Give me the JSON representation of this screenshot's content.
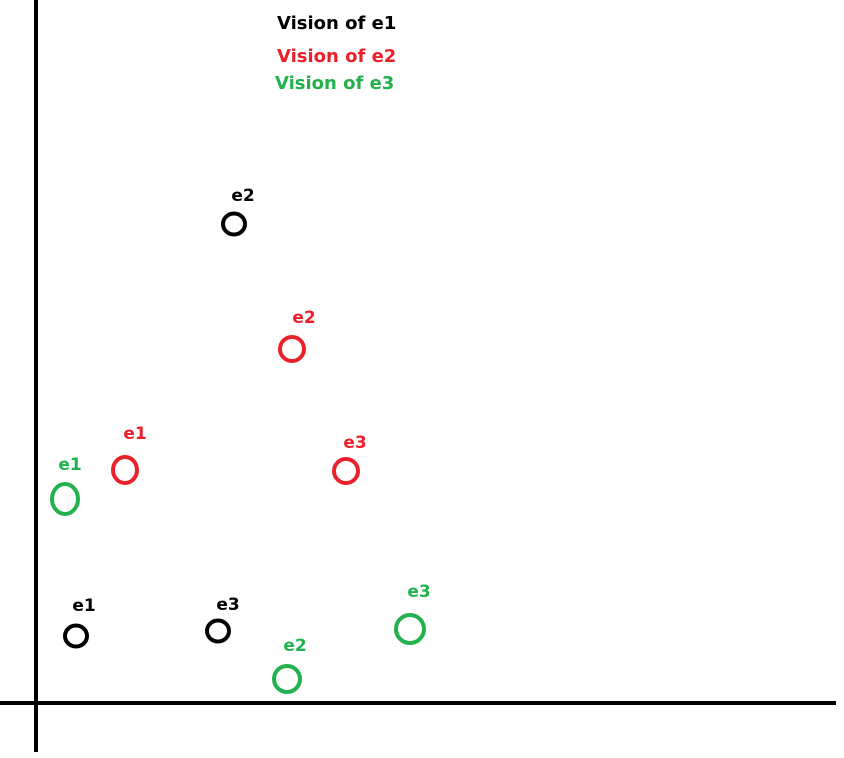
{
  "colors": {
    "e1": "#000000",
    "e2": "#e8212b",
    "e3": "#22b14c",
    "axis": "#000000"
  },
  "legend": [
    {
      "text": "Vision of e1",
      "color_key": "e1"
    },
    {
      "text": "Vision of e2",
      "color_key": "e2"
    },
    {
      "text": "Vision of e3",
      "color_key": "e3"
    }
  ],
  "visions": [
    {
      "observer": "e1",
      "color_key": "e1",
      "points": [
        {
          "label": "e1"
        },
        {
          "label": "e2"
        },
        {
          "label": "e3"
        }
      ]
    },
    {
      "observer": "e2",
      "color_key": "e2",
      "points": [
        {
          "label": "e1"
        },
        {
          "label": "e2"
        },
        {
          "label": "e3"
        }
      ]
    },
    {
      "observer": "e3",
      "color_key": "e3",
      "points": [
        {
          "label": "e1"
        },
        {
          "label": "e2"
        },
        {
          "label": "e3"
        }
      ]
    }
  ]
}
